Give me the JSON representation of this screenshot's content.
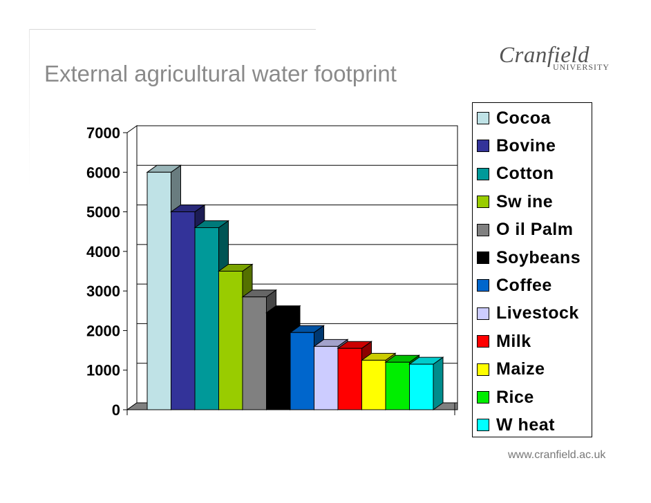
{
  "slide": {
    "title": "External agricultural water footprint",
    "logo_text": "Cranfield",
    "logo_subtext": "UNIVERSITY",
    "website": "www.cranfield.ac.uk"
  },
  "chart_data": {
    "type": "bar",
    "style": "3d-column",
    "title": "",
    "xlabel": "",
    "ylabel": "",
    "ylim": [
      0,
      7000
    ],
    "yticks": [
      0,
      1000,
      2000,
      3000,
      4000,
      5000,
      6000,
      7000
    ],
    "grid": true,
    "legend_position": "right",
    "categories": [
      "Cocoa",
      "Bovine",
      "Cotton",
      "Swine",
      "Oil Palm",
      "Soybeans",
      "Coffee",
      "Livestock",
      "Milk",
      "Maize",
      "Rice",
      "Wheat"
    ],
    "legend_labels": [
      "Cocoa",
      "Bovine",
      "Cotton",
      "Sw ine",
      "O il Palm",
      "Soybeans",
      "Coffee",
      "Livestock",
      "Milk",
      "Maize",
      "Rice",
      "W heat"
    ],
    "values": [
      6000,
      5000,
      4600,
      3500,
      2850,
      2450,
      1950,
      1600,
      1550,
      1250,
      1200,
      1150
    ],
    "colors": [
      "#bfe2e6",
      "#333399",
      "#009999",
      "#99cc00",
      "#808080",
      "#000000",
      "#0066cc",
      "#ccccff",
      "#ff0000",
      "#ffff00",
      "#00ee00",
      "#00ffff"
    ]
  }
}
